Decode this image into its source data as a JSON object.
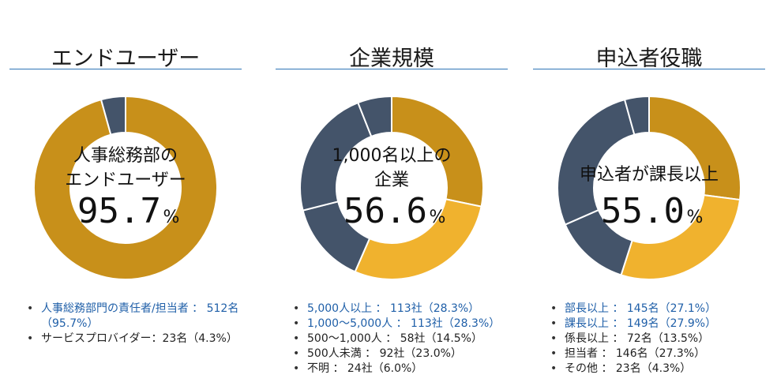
{
  "colors": {
    "gold_dark": "#c8901a",
    "gold_light": "#f0b22e",
    "slate": "#44546a",
    "rule": "#2e75b6",
    "link_blue": "#1f5fa8"
  },
  "chart_data": [
    {
      "type": "pie",
      "donut": true,
      "title": "エンドユーザー",
      "center_text": [
        "人事総務部の",
        "エンドユーザー"
      ],
      "center_value": "95.7",
      "center_unit": "%",
      "slices": [
        {
          "label": "人事総務部門の責任者/担当者",
          "value": 95.7,
          "color": "#c8901a"
        },
        {
          "label": "サービスプロバイダー",
          "value": 4.3,
          "color": "#44546a"
        }
      ],
      "legend": [
        {
          "text": "人事総務部門の責任者/担当者 ： 512名（95.7%）",
          "style": "blue"
        },
        {
          "text": "サービスプロバイダー：23名（4.3%）",
          "style": "dark"
        }
      ]
    },
    {
      "type": "pie",
      "donut": true,
      "title": "企業規模",
      "center_text": [
        "1,000名以上の",
        "企業"
      ],
      "center_value": "56.6",
      "center_unit": "%",
      "slices": [
        {
          "label": "5,000人以上",
          "value": 28.3,
          "color": "#c8901a"
        },
        {
          "label": "1,000～5,000人",
          "value": 28.3,
          "color": "#f0b22e"
        },
        {
          "label": "500～1,000人",
          "value": 14.5,
          "color": "#44546a"
        },
        {
          "label": "500人未満",
          "value": 23.0,
          "color": "#44546a"
        },
        {
          "label": "不明",
          "value": 6.0,
          "color": "#44546a"
        }
      ],
      "legend": [
        {
          "text": "5,000人以上 ： 113社（28.3%）",
          "style": "blue"
        },
        {
          "text": "1,000～5,000人 ： 113社（28.3%）",
          "style": "blue"
        },
        {
          "text": "500～1,000人 ： 58社（14.5%）",
          "style": "dark"
        },
        {
          "text": "500人未満 ： 92社（23.0%）",
          "style": "dark"
        },
        {
          "text": "不明 ： 24社（6.0%）",
          "style": "dark"
        }
      ]
    },
    {
      "type": "pie",
      "donut": true,
      "title": "申込者役職",
      "center_text": [
        "申込者が課長以上"
      ],
      "center_value": "55.0",
      "center_unit": "%",
      "slices": [
        {
          "label": "部長以上",
          "value": 27.1,
          "color": "#c8901a"
        },
        {
          "label": "課長以上",
          "value": 27.9,
          "color": "#f0b22e"
        },
        {
          "label": "係長以上",
          "value": 13.5,
          "color": "#44546a"
        },
        {
          "label": "担当者",
          "value": 27.3,
          "color": "#44546a"
        },
        {
          "label": "その他",
          "value": 4.3,
          "color": "#44546a"
        }
      ],
      "legend": [
        {
          "text": "部長以上 ： 145名（27.1%）",
          "style": "blue"
        },
        {
          "text": "課長以上 ： 149名（27.9%）",
          "style": "blue"
        },
        {
          "text": "係長以上 ： 72名（13.5%）",
          "style": "dark"
        },
        {
          "text": "担当者 ： 146名（27.3%）",
          "style": "dark"
        },
        {
          "text": "その他 ： 23名（4.3%）",
          "style": "dark"
        }
      ]
    }
  ]
}
